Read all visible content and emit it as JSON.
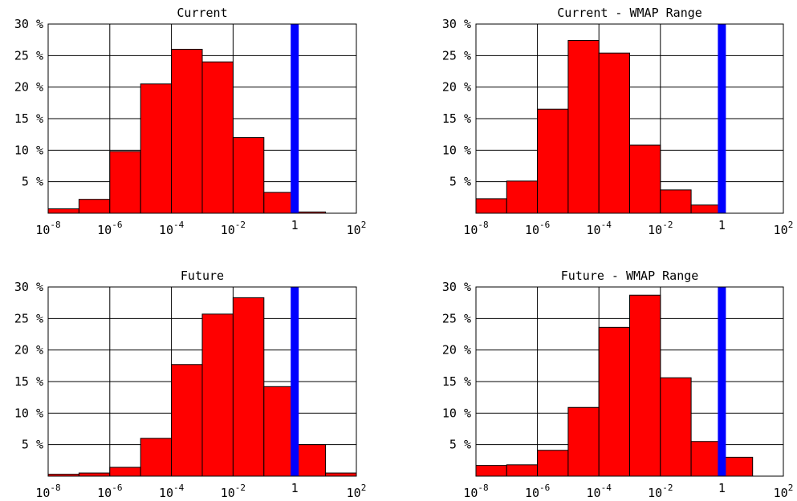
{
  "chart_data": [
    {
      "type": "bar",
      "title": "Current",
      "xlabel": "",
      "ylabel": "",
      "x_scale": "log10",
      "xlim": [
        1e-08,
        100
      ],
      "ylim": [
        0,
        30
      ],
      "y_ticks": [
        5,
        10,
        15,
        20,
        25,
        30
      ],
      "y_tick_labels": [
        "5 %",
        "10 %",
        "15 %",
        "20 %",
        "25 %",
        "30 %"
      ],
      "x_ticks": [
        1e-08,
        1e-06,
        0.0001,
        0.01,
        1,
        100
      ],
      "x_tick_labels": [
        {
          "base": "10",
          "exp": "-8"
        },
        {
          "base": "10",
          "exp": "-6"
        },
        {
          "base": "10",
          "exp": "-4"
        },
        {
          "base": "10",
          "exp": "-2"
        },
        {
          "base": "1",
          "exp": ""
        },
        {
          "base": "10",
          "exp": "2"
        }
      ],
      "grid": true,
      "bin_edges": [
        1e-08,
        1e-07,
        1e-06,
        1e-05,
        0.0001,
        0.001,
        0.01,
        0.1,
        1,
        10,
        100
      ],
      "values": [
        0.7,
        2.2,
        9.8,
        20.5,
        26.0,
        24.0,
        12.0,
        3.3,
        0.2,
        0.0
      ],
      "marker_x": 1,
      "bar_color": "#ff0000",
      "marker_color": "#0000ff"
    },
    {
      "type": "bar",
      "title": "Current - WMAP Range",
      "xlabel": "",
      "ylabel": "",
      "x_scale": "log10",
      "xlim": [
        1e-08,
        100
      ],
      "ylim": [
        0,
        30
      ],
      "y_ticks": [
        5,
        10,
        15,
        20,
        25,
        30
      ],
      "y_tick_labels": [
        "5 %",
        "10 %",
        "15 %",
        "20 %",
        "25 %",
        "30 %"
      ],
      "x_ticks": [
        1e-08,
        1e-06,
        0.0001,
        0.01,
        1,
        100
      ],
      "x_tick_labels": [
        {
          "base": "10",
          "exp": "-8"
        },
        {
          "base": "10",
          "exp": "-6"
        },
        {
          "base": "10",
          "exp": "-4"
        },
        {
          "base": "10",
          "exp": "-2"
        },
        {
          "base": "1",
          "exp": ""
        },
        {
          "base": "10",
          "exp": "2"
        }
      ],
      "grid": true,
      "bin_edges": [
        1e-08,
        1e-07,
        1e-06,
        1e-05,
        0.0001,
        0.001,
        0.01,
        0.1,
        1,
        10,
        100
      ],
      "values": [
        2.3,
        5.1,
        16.5,
        27.4,
        25.4,
        10.8,
        3.7,
        1.3,
        0.0,
        0.0
      ],
      "marker_x": 1,
      "bar_color": "#ff0000",
      "marker_color": "#0000ff"
    },
    {
      "type": "bar",
      "title": "Future",
      "xlabel": "",
      "ylabel": "",
      "x_scale": "log10",
      "xlim": [
        1e-08,
        100
      ],
      "ylim": [
        0,
        30
      ],
      "y_ticks": [
        5,
        10,
        15,
        20,
        25,
        30
      ],
      "y_tick_labels": [
        "5 %",
        "10 %",
        "15 %",
        "20 %",
        "25 %",
        "30 %"
      ],
      "x_ticks": [
        1e-08,
        1e-06,
        0.0001,
        0.01,
        1,
        100
      ],
      "x_tick_labels": [
        {
          "base": "10",
          "exp": "-8"
        },
        {
          "base": "10",
          "exp": "-6"
        },
        {
          "base": "10",
          "exp": "-4"
        },
        {
          "base": "10",
          "exp": "-2"
        },
        {
          "base": "1",
          "exp": ""
        },
        {
          "base": "10",
          "exp": "2"
        }
      ],
      "grid": true,
      "bin_edges": [
        1e-08,
        1e-07,
        1e-06,
        1e-05,
        0.0001,
        0.001,
        0.01,
        0.1,
        1,
        10,
        100
      ],
      "values": [
        0.3,
        0.5,
        1.4,
        6.0,
        17.7,
        25.7,
        28.3,
        14.2,
        5.0,
        0.5
      ],
      "marker_x": 1,
      "bar_color": "#ff0000",
      "marker_color": "#0000ff"
    },
    {
      "type": "bar",
      "title": "Future - WMAP Range",
      "xlabel": "",
      "ylabel": "",
      "x_scale": "log10",
      "xlim": [
        1e-08,
        100
      ],
      "ylim": [
        0,
        30
      ],
      "y_ticks": [
        5,
        10,
        15,
        20,
        25,
        30
      ],
      "y_tick_labels": [
        "5 %",
        "10 %",
        "15 %",
        "20 %",
        "25 %",
        "30 %"
      ],
      "x_ticks": [
        1e-08,
        1e-06,
        0.0001,
        0.01,
        1,
        100
      ],
      "x_tick_labels": [
        {
          "base": "10",
          "exp": "-8"
        },
        {
          "base": "10",
          "exp": "-6"
        },
        {
          "base": "10",
          "exp": "-4"
        },
        {
          "base": "10",
          "exp": "-2"
        },
        {
          "base": "1",
          "exp": ""
        },
        {
          "base": "10",
          "exp": "2"
        }
      ],
      "grid": true,
      "bin_edges": [
        1e-08,
        1e-07,
        1e-06,
        1e-05,
        0.0001,
        0.001,
        0.01,
        0.1,
        1,
        10,
        100
      ],
      "values": [
        1.7,
        1.8,
        4.1,
        10.9,
        23.6,
        28.7,
        15.6,
        5.5,
        3.0,
        0.0
      ],
      "marker_x": 1,
      "bar_color": "#ff0000",
      "marker_color": "#0000ff"
    }
  ]
}
